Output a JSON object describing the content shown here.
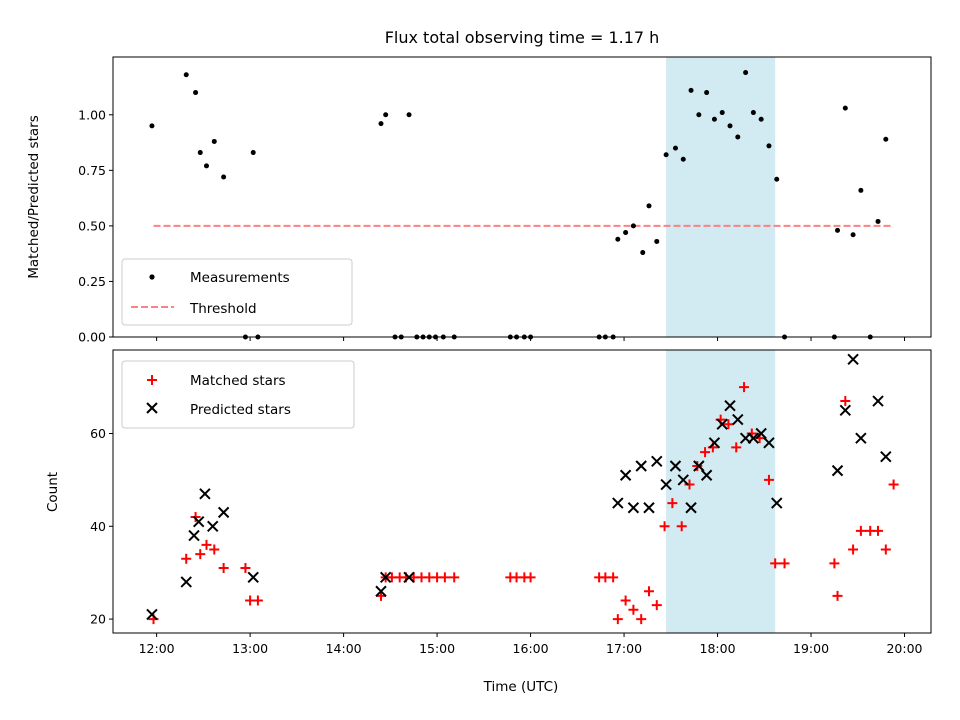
{
  "title": "Flux total observing time = 1.17 h",
  "chart_data": [
    {
      "type": "scatter",
      "ylabel": "Matched/Predicted stars",
      "xlabel": "",
      "xlim": [
        "11:32",
        "20:17"
      ],
      "ylim": [
        0,
        1.26
      ],
      "grid": false,
      "legend": "lower-left",
      "highlight_span": {
        "start": "17:27",
        "end": "18:37",
        "color": "#add8e6"
      },
      "x_tick_labels": [
        "12:00",
        "13:00",
        "14:00",
        "15:00",
        "16:00",
        "17:00",
        "18:00",
        "19:00",
        "20:00"
      ],
      "y_ticks": [
        0,
        0.25,
        0.5,
        0.75,
        1.0
      ],
      "y_tick_labels": [
        "0.00",
        "0.25",
        "0.50",
        "0.75",
        "1.00"
      ],
      "threshold": {
        "name": "Threshold",
        "y": 0.5,
        "x_from": "11:58",
        "x_to": "19:53",
        "color": "#ff8080"
      },
      "series": [
        {
          "name": "Measurements",
          "color": "#000000",
          "marker": "dot",
          "points": [
            [
              "11:57",
              0.95
            ],
            [
              "12:19",
              1.18
            ],
            [
              "12:25",
              1.1
            ],
            [
              "12:28",
              0.83
            ],
            [
              "12:32",
              0.77
            ],
            [
              "12:37",
              0.88
            ],
            [
              "12:43",
              0.72
            ],
            [
              "13:02",
              0.83
            ],
            [
              "12:57",
              0.0
            ],
            [
              "13:05",
              0.0
            ],
            [
              "14:24",
              0.96
            ],
            [
              "14:27",
              1.0
            ],
            [
              "14:42",
              1.0
            ],
            [
              "14:33",
              0.0
            ],
            [
              "14:37",
              0.0
            ],
            [
              "14:47",
              0.0
            ],
            [
              "14:51",
              0.0
            ],
            [
              "14:55",
              0.0
            ],
            [
              "14:59",
              0.0
            ],
            [
              "15:04",
              0.0
            ],
            [
              "15:11",
              0.0
            ],
            [
              "15:47",
              0.0
            ],
            [
              "15:51",
              0.0
            ],
            [
              "15:56",
              0.0
            ],
            [
              "16:00",
              0.0
            ],
            [
              "16:44",
              0.0
            ],
            [
              "16:48",
              0.0
            ],
            [
              "16:53",
              0.0
            ],
            [
              "16:56",
              0.44
            ],
            [
              "17:01",
              0.47
            ],
            [
              "17:06",
              0.5
            ],
            [
              "17:12",
              0.38
            ],
            [
              "17:16",
              0.59
            ],
            [
              "17:21",
              0.43
            ],
            [
              "17:27",
              0.82
            ],
            [
              "17:33",
              0.85
            ],
            [
              "17:38",
              0.8
            ],
            [
              "17:43",
              1.11
            ],
            [
              "17:48",
              1.0
            ],
            [
              "17:53",
              1.1
            ],
            [
              "17:58",
              0.98
            ],
            [
              "18:03",
              1.01
            ],
            [
              "18:08",
              0.95
            ],
            [
              "18:13",
              0.9
            ],
            [
              "18:18",
              1.19
            ],
            [
              "18:23",
              1.01
            ],
            [
              "18:28",
              0.98
            ],
            [
              "18:33",
              0.86
            ],
            [
              "18:38",
              0.71
            ],
            [
              "18:43",
              0.0
            ],
            [
              "19:15",
              0.0
            ],
            [
              "19:17",
              0.48
            ],
            [
              "19:22",
              1.03
            ],
            [
              "19:27",
              0.46
            ],
            [
              "19:32",
              0.66
            ],
            [
              "19:38",
              0.0
            ],
            [
              "19:43",
              0.52
            ],
            [
              "19:48",
              0.89
            ]
          ]
        }
      ]
    },
    {
      "type": "scatter",
      "xlabel": "Time (UTC)",
      "ylabel": "Count",
      "xlim": [
        "11:32",
        "20:17"
      ],
      "ylim": [
        17,
        78
      ],
      "grid": false,
      "legend": "upper-left",
      "highlight_span": {
        "start": "17:27",
        "end": "18:37",
        "color": "#add8e6"
      },
      "x_tick_labels": [
        "12:00",
        "13:00",
        "14:00",
        "15:00",
        "16:00",
        "17:00",
        "18:00",
        "19:00",
        "20:00"
      ],
      "y_ticks": [
        20,
        40,
        60
      ],
      "y_tick_labels": [
        "20",
        "40",
        "60"
      ],
      "series": [
        {
          "name": "Matched stars",
          "color": "#ff0000",
          "marker": "plus",
          "points": [
            [
              "11:58",
              20
            ],
            [
              "12:19",
              33
            ],
            [
              "12:25",
              42
            ],
            [
              "12:28",
              34
            ],
            [
              "12:32",
              36
            ],
            [
              "12:37",
              35
            ],
            [
              "12:43",
              31
            ],
            [
              "12:57",
              31
            ],
            [
              "13:00",
              24
            ],
            [
              "13:05",
              24
            ],
            [
              "14:24",
              25
            ],
            [
              "14:27",
              29
            ],
            [
              "14:31",
              29
            ],
            [
              "14:36",
              29
            ],
            [
              "14:40",
              29
            ],
            [
              "14:45",
              29
            ],
            [
              "14:50",
              29
            ],
            [
              "14:55",
              29
            ],
            [
              "15:00",
              29
            ],
            [
              "15:05",
              29
            ],
            [
              "15:11",
              29
            ],
            [
              "15:47",
              29
            ],
            [
              "15:51",
              29
            ],
            [
              "15:56",
              29
            ],
            [
              "16:00",
              29
            ],
            [
              "16:44",
              29
            ],
            [
              "16:48",
              29
            ],
            [
              "16:53",
              29
            ],
            [
              "16:56",
              20
            ],
            [
              "17:01",
              24
            ],
            [
              "17:06",
              22
            ],
            [
              "17:11",
              20
            ],
            [
              "17:16",
              26
            ],
            [
              "17:21",
              23
            ],
            [
              "17:26",
              40
            ],
            [
              "17:31",
              45
            ],
            [
              "17:37",
              40
            ],
            [
              "17:42",
              49
            ],
            [
              "17:47",
              53
            ],
            [
              "17:52",
              56
            ],
            [
              "17:57",
              57
            ],
            [
              "18:02",
              63
            ],
            [
              "18:07",
              62
            ],
            [
              "18:12",
              57
            ],
            [
              "18:17",
              70
            ],
            [
              "18:22",
              60
            ],
            [
              "18:27",
              59
            ],
            [
              "18:33",
              50
            ],
            [
              "18:37",
              32
            ],
            [
              "18:43",
              32
            ],
            [
              "19:15",
              32
            ],
            [
              "19:17",
              25
            ],
            [
              "19:22",
              67
            ],
            [
              "19:27",
              35
            ],
            [
              "19:32",
              39
            ],
            [
              "19:38",
              39
            ],
            [
              "19:43",
              39
            ],
            [
              "19:48",
              35
            ],
            [
              "19:53",
              49
            ]
          ]
        },
        {
          "name": "Predicted stars",
          "color": "#000000",
          "marker": "x",
          "points": [
            [
              "11:57",
              21
            ],
            [
              "12:19",
              28
            ],
            [
              "12:24",
              38
            ],
            [
              "12:27",
              41
            ],
            [
              "12:31",
              47
            ],
            [
              "12:36",
              40
            ],
            [
              "12:43",
              43
            ],
            [
              "13:02",
              29
            ],
            [
              "14:24",
              26
            ],
            [
              "14:27",
              29
            ],
            [
              "14:42",
              29
            ],
            [
              "16:56",
              45
            ],
            [
              "17:01",
              51
            ],
            [
              "17:06",
              44
            ],
            [
              "17:11",
              53
            ],
            [
              "17:16",
              44
            ],
            [
              "17:21",
              54
            ],
            [
              "17:27",
              49
            ],
            [
              "17:33",
              53
            ],
            [
              "17:38",
              50
            ],
            [
              "17:43",
              44
            ],
            [
              "17:48",
              53
            ],
            [
              "17:53",
              51
            ],
            [
              "17:58",
              58
            ],
            [
              "18:03",
              62
            ],
            [
              "18:08",
              66
            ],
            [
              "18:13",
              63
            ],
            [
              "18:18",
              59
            ],
            [
              "18:23",
              59
            ],
            [
              "18:28",
              60
            ],
            [
              "18:33",
              58
            ],
            [
              "18:38",
              45
            ],
            [
              "19:17",
              52
            ],
            [
              "19:22",
              65
            ],
            [
              "19:27",
              76
            ],
            [
              "19:32",
              59
            ],
            [
              "19:43",
              67
            ],
            [
              "19:48",
              55
            ]
          ]
        }
      ]
    }
  ]
}
